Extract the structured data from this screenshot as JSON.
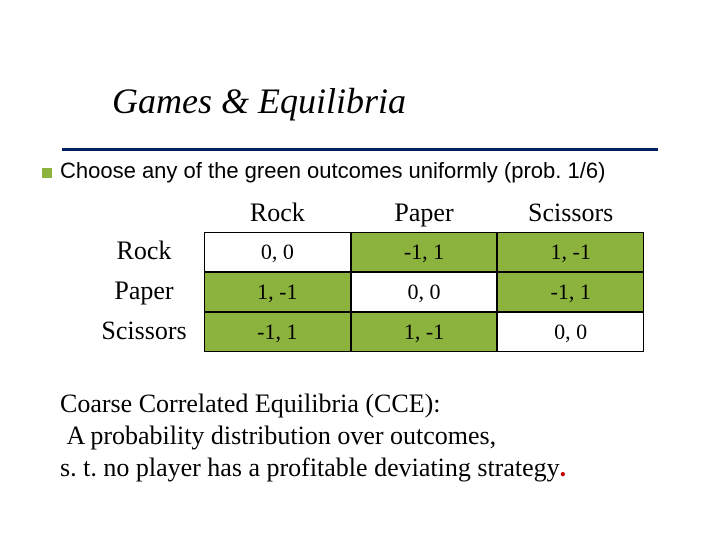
{
  "title": "Games & Equilibria",
  "subhead": "Choose any of the green outcomes uniformly (prob. 1/6)",
  "colors": {
    "accent_square": "#8db33f",
    "underline": "#002060",
    "green_cell": "#8db33f",
    "red_period": "#c00000",
    "text": "#000000",
    "background": "#ffffff"
  },
  "table": {
    "col_headers": [
      "Rock",
      "Paper",
      "Scissors"
    ],
    "row_headers": [
      "Rock",
      "Paper",
      "Scissors"
    ],
    "cells": [
      [
        {
          "v": "0, 0",
          "g": false
        },
        {
          "v": "-1, 1",
          "g": true
        },
        {
          "v": "1, -1",
          "g": true
        }
      ],
      [
        {
          "v": "1, -1",
          "g": true
        },
        {
          "v": "0, 0",
          "g": false
        },
        {
          "v": "-1, 1",
          "g": true
        }
      ],
      [
        {
          "v": "-1, 1",
          "g": true
        },
        {
          "v": "1, -1",
          "g": true
        },
        {
          "v": "0, 0",
          "g": false
        }
      ]
    ]
  },
  "body": {
    "line1": "Coarse Correlated Equilibria (CCE):",
    "line2_pre": " A probability distribution over outcomes,",
    "line3_pre": "s. t. no player has a profitable deviating strategy",
    "line3_period": "."
  },
  "typography": {
    "title_fontsize": 36,
    "subhead_fontsize": 22,
    "header_fontsize": 26,
    "cell_fontsize": 22,
    "body_fontsize": 26
  }
}
